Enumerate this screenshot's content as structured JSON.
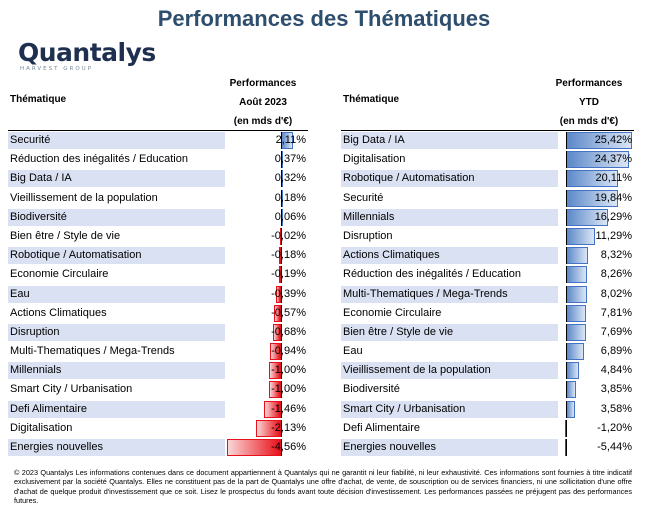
{
  "title": "Performances des Thématiques",
  "logo": {
    "name": "Quantalys",
    "sub": "HARVEST GROUP"
  },
  "left": {
    "header": {
      "theme": "Thématique",
      "perf_lines": [
        "Performances",
        "Août 2023",
        "(en mds d'€)"
      ]
    },
    "max_abs": 4.56,
    "rows": [
      {
        "label": "Securité",
        "value": 2.11,
        "display": "2,11%",
        "shaded": true
      },
      {
        "label": "Réduction des inégalités / Education",
        "value": 0.37,
        "display": "0,37%",
        "shaded": false
      },
      {
        "label": "Big Data / IA",
        "value": 0.32,
        "display": "0,32%",
        "shaded": true
      },
      {
        "label": "Vieillissement de la population",
        "value": 0.18,
        "display": "0,18%",
        "shaded": false
      },
      {
        "label": "Biodiversité",
        "value": 0.06,
        "display": "0,06%",
        "shaded": true
      },
      {
        "label": "Bien être / Style de vie",
        "value": -0.02,
        "display": "-0,02%",
        "shaded": false
      },
      {
        "label": "Robotique / Automatisation",
        "value": -0.18,
        "display": "-0,18%",
        "shaded": true
      },
      {
        "label": "Economie Circulaire",
        "value": -0.19,
        "display": "-0,19%",
        "shaded": false
      },
      {
        "label": "Eau",
        "value": -0.39,
        "display": "-0,39%",
        "shaded": true
      },
      {
        "label": "Actions Climatiques",
        "value": -0.57,
        "display": "-0,57%",
        "shaded": false
      },
      {
        "label": "Disruption",
        "value": -0.68,
        "display": "-0,68%",
        "shaded": true
      },
      {
        "label": "Multi-Thematiques / Mega-Trends",
        "value": -0.94,
        "display": "-0,94%",
        "shaded": false
      },
      {
        "label": "Millennials",
        "value": -1.0,
        "display": "-1,00%",
        "shaded": true
      },
      {
        "label": "Smart City / Urbanisation",
        "value": -1.0,
        "display": "-1,00%",
        "shaded": false
      },
      {
        "label": "Defi Alimentaire",
        "value": -1.46,
        "display": "-1,46%",
        "shaded": true
      },
      {
        "label": "Digitalisation",
        "value": -2.13,
        "display": "-2,13%",
        "shaded": false
      },
      {
        "label": "Energies nouvelles",
        "value": -4.56,
        "display": "-4,56%",
        "shaded": true
      }
    ]
  },
  "right": {
    "header": {
      "theme": "Thématique",
      "perf_lines": [
        "Performances",
        "YTD",
        "(en mds d'€)"
      ]
    },
    "max_abs": 25.42,
    "rows": [
      {
        "label": "Big Data / IA",
        "value": 25.42,
        "display": "25,42%",
        "shaded": true
      },
      {
        "label": "Digitalisation",
        "value": 24.37,
        "display": "24,37%",
        "shaded": false
      },
      {
        "label": "Robotique / Automatisation",
        "value": 20.11,
        "display": "20,11%",
        "shaded": true
      },
      {
        "label": "Securité",
        "value": 19.84,
        "display": "19,84%",
        "shaded": false
      },
      {
        "label": "Millennials",
        "value": 16.29,
        "display": "16,29%",
        "shaded": true
      },
      {
        "label": "Disruption",
        "value": 11.29,
        "display": "11,29%",
        "shaded": false
      },
      {
        "label": "Actions Climatiques",
        "value": 8.32,
        "display": "8,32%",
        "shaded": true
      },
      {
        "label": "Réduction des inégalités / Education",
        "value": 8.26,
        "display": "8,26%",
        "shaded": false
      },
      {
        "label": "Multi-Thematiques / Mega-Trends",
        "value": 8.02,
        "display": "8,02%",
        "shaded": true
      },
      {
        "label": "Economie Circulaire",
        "value": 7.81,
        "display": "7,81%",
        "shaded": false
      },
      {
        "label": "Bien être / Style de vie",
        "value": 7.69,
        "display": "7,69%",
        "shaded": true
      },
      {
        "label": "Eau",
        "value": 6.89,
        "display": "6,89%",
        "shaded": false
      },
      {
        "label": "Vieillissement de la population",
        "value": 4.84,
        "display": "4,84%",
        "shaded": true
      },
      {
        "label": "Biodiversité",
        "value": 3.85,
        "display": "3,85%",
        "shaded": false
      },
      {
        "label": "Smart City / Urbanisation",
        "value": 3.58,
        "display": "3,58%",
        "shaded": true
      },
      {
        "label": "Defi Alimentaire",
        "value": -1.2,
        "display": "-1,20%",
        "shaded": false
      },
      {
        "label": "Energies nouvelles",
        "value": -5.44,
        "display": "-5,44%",
        "shaded": true
      }
    ]
  },
  "footer": "© 2023 Quantalys Les informations contenues dans ce document appartiennent à Quantalys qui ne garantit ni leur fiabilité, ni leur exhaustivité. Ces informations sont fournies à titre indicatif exclusivement par la société Quantalys. Elles ne constituent pas de la part de Quantalys une offre d'achat, de vente, de souscription ou de services financiers, ni une sollicitation d'une offre d'achat de quelque produit d'investissement que ce soit. Lisez le prospectus du fonds avant toute décision d'investissement. Les performances passées ne préjugent pas des performances futures.",
  "colors": {
    "title": "#2e4e6e",
    "shade": "#d9e1f2",
    "positive": "#4472c4",
    "negative": "#e8101a"
  }
}
